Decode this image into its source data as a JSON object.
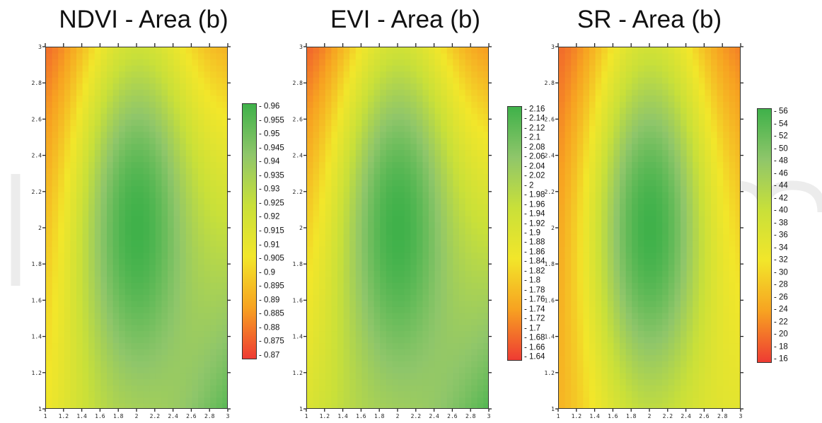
{
  "chart_data": [
    {
      "type": "heatmap",
      "title": "NDVI - Area (b)",
      "x_ticks": [
        "1",
        "1.2",
        "1.4",
        "1.6",
        "1.8",
        "2",
        "2.2",
        "2.4",
        "2.6",
        "2.8",
        "3"
      ],
      "y_ticks": [
        "1",
        "1.2",
        "1.4",
        "1.6",
        "1.8",
        "2",
        "2.2",
        "2.4",
        "2.6",
        "2.8",
        "3"
      ],
      "xlim": [
        1,
        3
      ],
      "ylim": [
        1,
        3
      ],
      "colorbar": {
        "min": 0.87,
        "max": 0.96,
        "ticks": [
          "0.96",
          "0.955",
          "0.95",
          "0.945",
          "0.94",
          "0.935",
          "0.93",
          "0.925",
          "0.92",
          "0.915",
          "0.91",
          "0.905",
          "0.9",
          "0.895",
          "0.89",
          "0.885",
          "0.88",
          "0.875",
          "0.87"
        ],
        "colors": [
          "#ee3b33",
          "#f7a221",
          "#f2e62a",
          "#c9e039",
          "#8fc66a",
          "#3fb14a"
        ]
      },
      "peak": {
        "x": 2.0,
        "y": 2.0,
        "value": 0.96
      },
      "corner_values": {
        "top_left": 0.875,
        "top_right": 0.89,
        "bottom_left": 0.905,
        "bottom_right": 0.955
      }
    },
    {
      "type": "heatmap",
      "title": "EVI - Area (b)",
      "x_ticks": [
        "1",
        "1.2",
        "1.4",
        "1.6",
        "1.8",
        "2",
        "2.2",
        "2.4",
        "2.6",
        "2.8",
        "3"
      ],
      "y_ticks": [
        "1",
        "1.2",
        "1.4",
        "1.6",
        "1.8",
        "2",
        "2.2",
        "2.4",
        "2.6",
        "2.8",
        "3"
      ],
      "xlim": [
        1,
        3
      ],
      "ylim": [
        1,
        3
      ],
      "colorbar": {
        "min": 1.64,
        "max": 2.16,
        "ticks": [
          "2.16",
          "2.14",
          "2.12",
          "2.1",
          "2.08",
          "2.06",
          "2.04",
          "2.02",
          "2",
          "1.98",
          "1.96",
          "1.94",
          "1.92",
          "1.9",
          "1.88",
          "1.86",
          "1.84",
          "1.82",
          "1.8",
          "1.78",
          "1.76",
          "1.74",
          "1.72",
          "1.7",
          "1.68",
          "1.66",
          "1.64"
        ],
        "colors": [
          "#ee3b33",
          "#f7a221",
          "#f2e62a",
          "#c9e039",
          "#8fc66a",
          "#3fb14a"
        ]
      },
      "peak": {
        "x": 2.0,
        "y": 2.0,
        "value": 2.16
      },
      "corner_values": {
        "top_left": 1.66,
        "top_right": 1.72,
        "bottom_left": 1.9,
        "bottom_right": 2.14
      }
    },
    {
      "type": "heatmap",
      "title": "SR - Area (b)",
      "x_ticks": [
        "1",
        "1.2",
        "1.4",
        "1.6",
        "1.8",
        "2",
        "2.2",
        "2.4",
        "2.6",
        "2.8",
        "3"
      ],
      "y_ticks": [
        "1",
        "1.2",
        "1.4",
        "1.6",
        "1.8",
        "2",
        "2.2",
        "2.4",
        "2.6",
        "2.8",
        "3"
      ],
      "xlim": [
        1,
        3
      ],
      "ylim": [
        1,
        3
      ],
      "colorbar": {
        "min": 15,
        "max": 56,
        "ticks": [
          "56",
          "54",
          "52",
          "50",
          "48",
          "46",
          "44",
          "42",
          "40",
          "38",
          "36",
          "34",
          "32",
          "30",
          "28",
          "26",
          "24",
          "22",
          "20",
          "18",
          "16"
        ],
        "colors": [
          "#ee3b33",
          "#f7a221",
          "#f2e62a",
          "#c9e039",
          "#8fc66a",
          "#3fb14a"
        ]
      },
      "peak": {
        "x": 2.0,
        "y": 2.0,
        "value": 56
      },
      "corner_values": {
        "top_left": 17,
        "top_right": 19,
        "bottom_left": 24,
        "bottom_right": 34
      }
    }
  ]
}
